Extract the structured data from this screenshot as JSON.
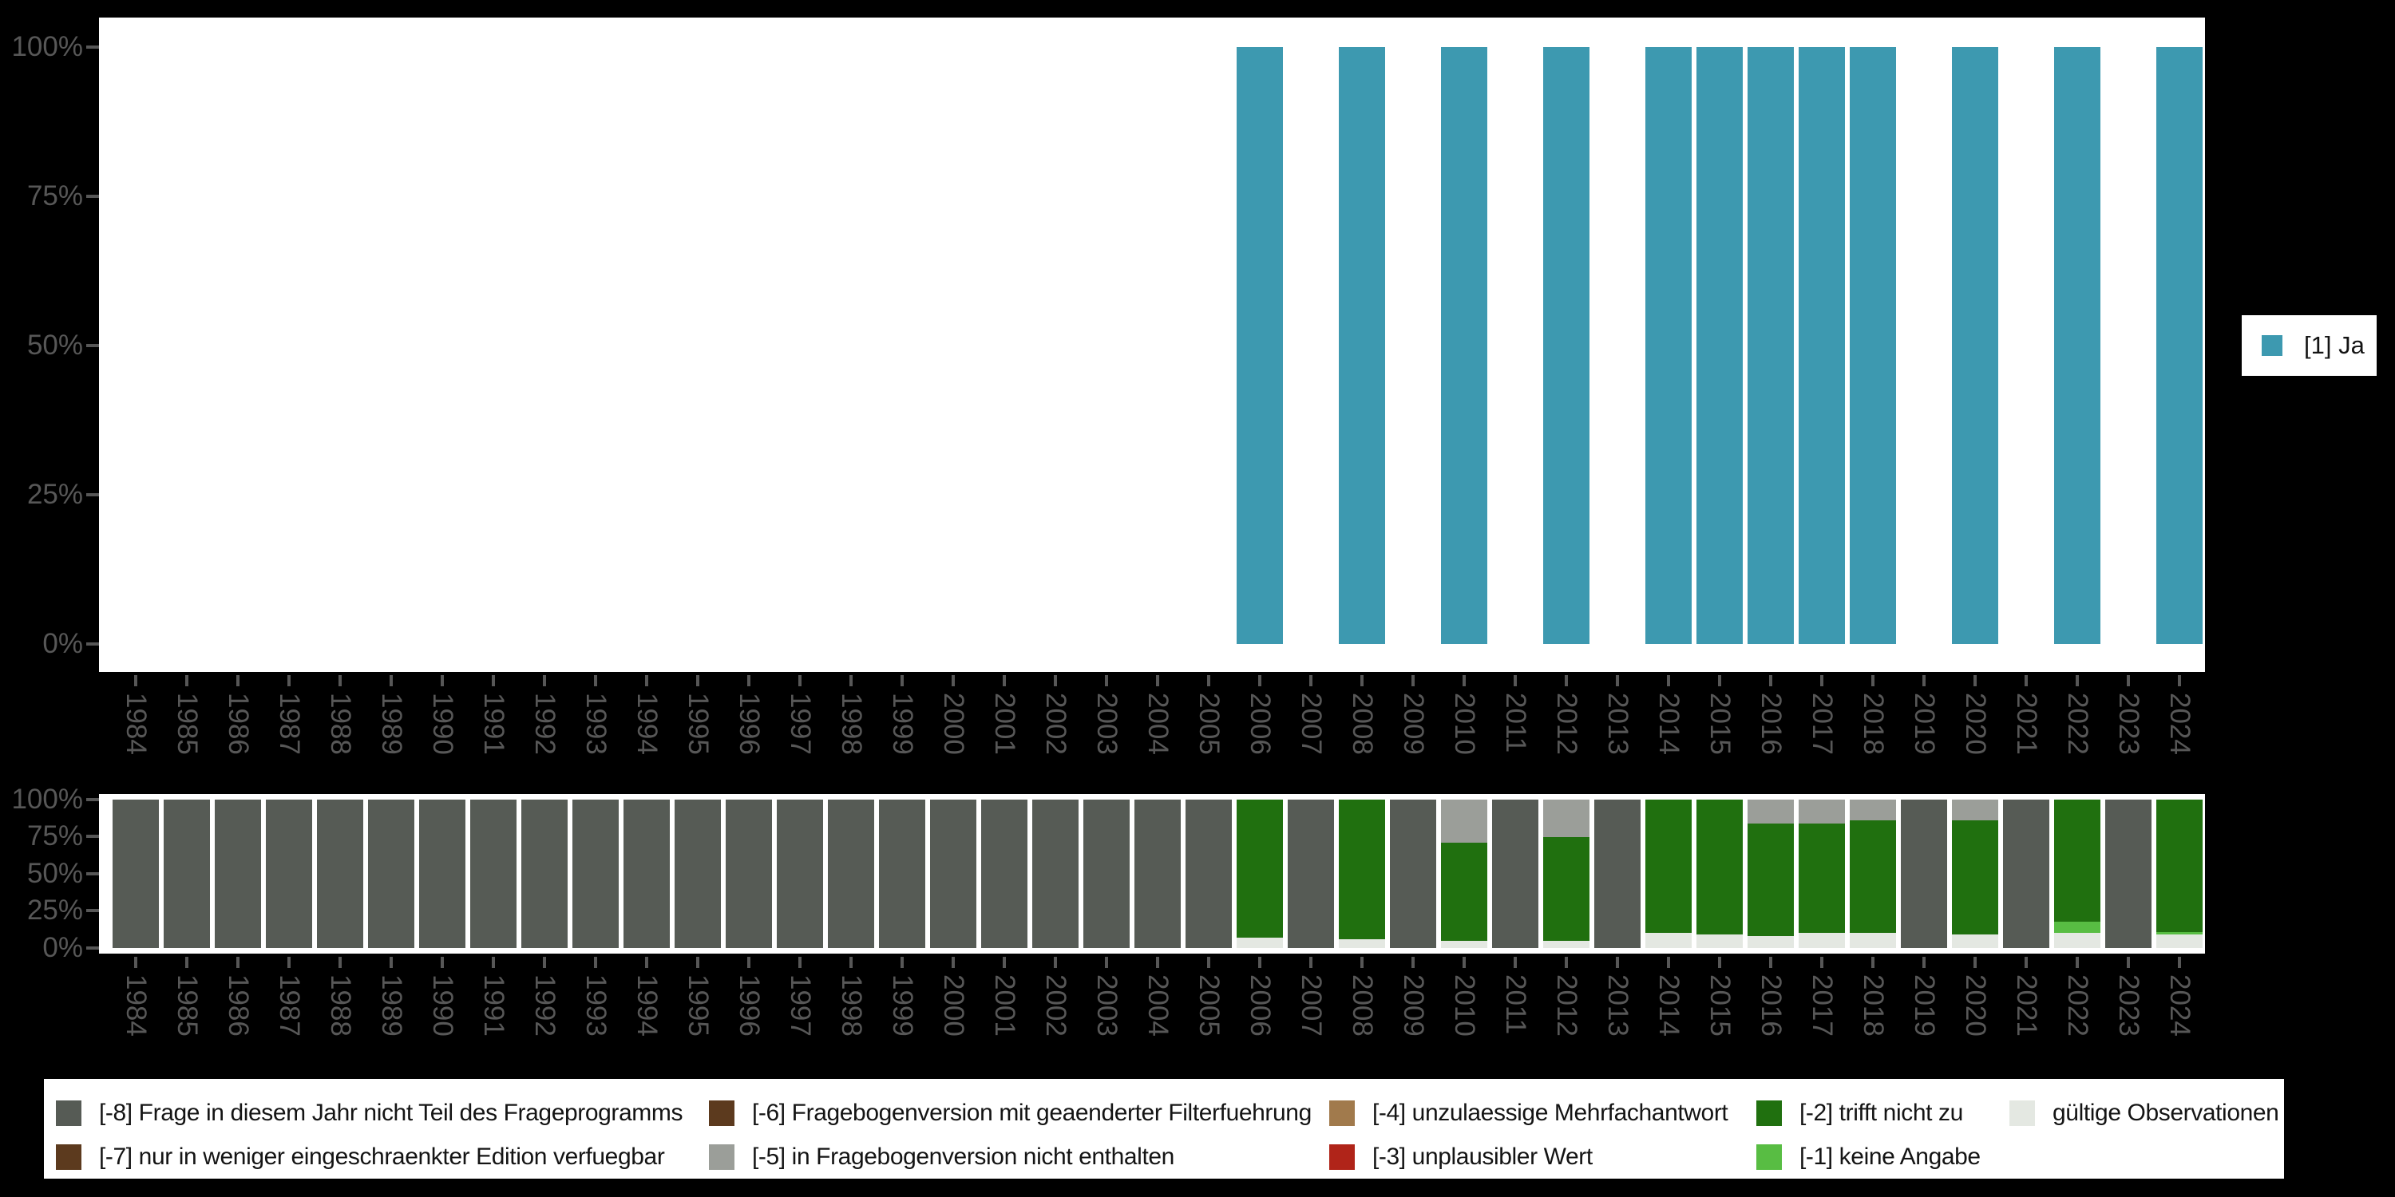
{
  "colors": {
    "ja": "#3D99B0",
    "miss8": "#565B55",
    "miss7": "#5C3A1E",
    "miss6": "#5C3A1E",
    "miss5": "#9B9E99",
    "miss4": "#A17A4C",
    "miss3": "#B02419",
    "miss2": "#20700F",
    "miss1": "#58BD43",
    "valid": "#E4E8E2"
  },
  "y_ticks": [
    "100%",
    "75%",
    "50%",
    "25%",
    "0%"
  ],
  "years": [
    "1984",
    "1985",
    "1986",
    "1987",
    "1988",
    "1989",
    "1990",
    "1991",
    "1992",
    "1993",
    "1994",
    "1995",
    "1996",
    "1997",
    "1998",
    "1999",
    "2000",
    "2001",
    "2002",
    "2003",
    "2004",
    "2005",
    "2006",
    "2007",
    "2008",
    "2009",
    "2010",
    "2011",
    "2012",
    "2013",
    "2014",
    "2015",
    "2016",
    "2017",
    "2018",
    "2019",
    "2020",
    "2021",
    "2022",
    "2023",
    "2024"
  ],
  "top_legend": {
    "label": "[1] Ja"
  },
  "bottom_legend": {
    "items": [
      {
        "key": "miss8",
        "label": "[-8] Frage in diesem Jahr nicht Teil des Frageprogramms"
      },
      {
        "key": "miss7",
        "label": "[-7] nur in weniger eingeschraenkter Edition verfuegbar"
      },
      {
        "key": "miss6",
        "label": "[-6] Fragebogenversion mit geaenderter Filterfuehrung"
      },
      {
        "key": "miss5",
        "label": "[-5] in Fragebogenversion nicht enthalten"
      },
      {
        "key": "miss4",
        "label": "[-4] unzulaessige Mehrfachantwort"
      },
      {
        "key": "miss3",
        "label": "[-3] unplausibler Wert"
      },
      {
        "key": "miss2",
        "label": "[-2] trifft nicht zu"
      },
      {
        "key": "miss1",
        "label": "[-1] keine Angabe"
      },
      {
        "key": "valid",
        "label": "gültige Observationen"
      }
    ]
  },
  "chart_data": [
    {
      "type": "bar",
      "title": "",
      "xlabel": "",
      "ylabel": "",
      "ylim": [
        0,
        100
      ],
      "ytick_labels": [
        "0%",
        "25%",
        "50%",
        "75%",
        "100%"
      ],
      "x_tick_rotation": 90,
      "grid": false,
      "legend_position": "right",
      "categories": [
        "1984",
        "1985",
        "1986",
        "1987",
        "1988",
        "1989",
        "1990",
        "1991",
        "1992",
        "1993",
        "1994",
        "1995",
        "1996",
        "1997",
        "1998",
        "1999",
        "2000",
        "2001",
        "2002",
        "2003",
        "2004",
        "2005",
        "2006",
        "2007",
        "2008",
        "2009",
        "2010",
        "2011",
        "2012",
        "2013",
        "2014",
        "2015",
        "2016",
        "2017",
        "2018",
        "2019",
        "2020",
        "2021",
        "2022",
        "2023",
        "2024"
      ],
      "series": [
        {
          "name": "[1] Ja",
          "color": "ja",
          "values": [
            0,
            0,
            0,
            0,
            0,
            0,
            0,
            0,
            0,
            0,
            0,
            0,
            0,
            0,
            0,
            0,
            0,
            0,
            0,
            0,
            0,
            0,
            100,
            0,
            100,
            0,
            100,
            0,
            100,
            0,
            100,
            100,
            100,
            100,
            100,
            0,
            100,
            0,
            100,
            0,
            100
          ]
        }
      ]
    },
    {
      "type": "stacked_bar_percent",
      "title": "",
      "xlabel": "",
      "ylabel": "",
      "ylim": [
        0,
        100
      ],
      "ytick_labels": [
        "0%",
        "25%",
        "50%",
        "75%",
        "100%"
      ],
      "x_tick_rotation": 90,
      "grid": false,
      "legend_position": "bottom",
      "categories": [
        "1984",
        "1985",
        "1986",
        "1987",
        "1988",
        "1989",
        "1990",
        "1991",
        "1992",
        "1993",
        "1994",
        "1995",
        "1996",
        "1997",
        "1998",
        "1999",
        "2000",
        "2001",
        "2002",
        "2003",
        "2004",
        "2005",
        "2006",
        "2007",
        "2008",
        "2009",
        "2010",
        "2011",
        "2012",
        "2013",
        "2014",
        "2015",
        "2016",
        "2017",
        "2018",
        "2019",
        "2020",
        "2021",
        "2022",
        "2023",
        "2024"
      ],
      "series": [
        {
          "name": "gültige Observationen",
          "color": "valid",
          "values": [
            0,
            0,
            0,
            0,
            0,
            0,
            0,
            0,
            0,
            0,
            0,
            0,
            0,
            0,
            0,
            0,
            0,
            0,
            0,
            0,
            0,
            0,
            7,
            0,
            6,
            0,
            5,
            0,
            5,
            0,
            10,
            9,
            8,
            10,
            10,
            0,
            9,
            0,
            10,
            0,
            9
          ]
        },
        {
          "name": "[-1] keine Angabe",
          "color": "miss1",
          "values": [
            0,
            0,
            0,
            0,
            0,
            0,
            0,
            0,
            0,
            0,
            0,
            0,
            0,
            0,
            0,
            0,
            0,
            0,
            0,
            0,
            0,
            0,
            0,
            0,
            0,
            0,
            0,
            0,
            0,
            0,
            0,
            0,
            0,
            0,
            0,
            0,
            0,
            0,
            8,
            0,
            2
          ]
        },
        {
          "name": "[-2] trifft nicht zu",
          "color": "miss2",
          "values": [
            0,
            0,
            0,
            0,
            0,
            0,
            0,
            0,
            0,
            0,
            0,
            0,
            0,
            0,
            0,
            0,
            0,
            0,
            0,
            0,
            0,
            0,
            93,
            0,
            94,
            0,
            66,
            0,
            70,
            0,
            90,
            91,
            76,
            74,
            76,
            0,
            77,
            0,
            82,
            0,
            89
          ]
        },
        {
          "name": "[-5] in Fragebogenversion nicht enthalten",
          "color": "miss5",
          "values": [
            0,
            0,
            0,
            0,
            0,
            0,
            0,
            0,
            0,
            0,
            0,
            0,
            0,
            0,
            0,
            0,
            0,
            0,
            0,
            0,
            0,
            0,
            0,
            0,
            0,
            0,
            29,
            0,
            25,
            0,
            0,
            0,
            16,
            16,
            14,
            0,
            14,
            0,
            0,
            0,
            0
          ]
        },
        {
          "name": "[-8] Frage in diesem Jahr nicht Teil des Frageprogramms",
          "color": "miss8",
          "values": [
            100,
            100,
            100,
            100,
            100,
            100,
            100,
            100,
            100,
            100,
            100,
            100,
            100,
            100,
            100,
            100,
            100,
            100,
            100,
            100,
            100,
            100,
            0,
            100,
            0,
            100,
            0,
            100,
            0,
            100,
            0,
            0,
            0,
            0,
            0,
            100,
            0,
            100,
            0,
            100,
            0
          ]
        }
      ]
    }
  ]
}
